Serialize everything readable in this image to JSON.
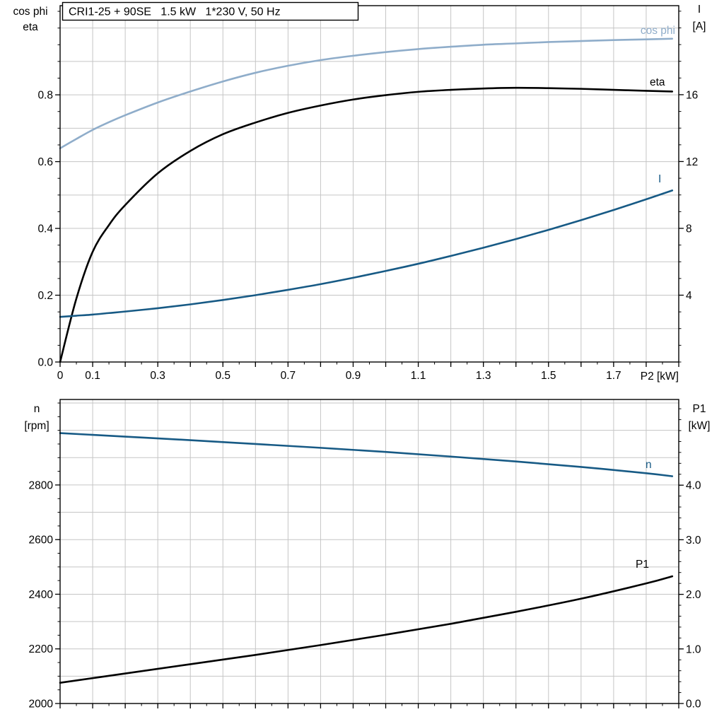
{
  "title_box": {
    "text": "CRI1-25 + 90SE   1.5 kW   1*230 V, 50 Hz"
  },
  "colors": {
    "background": "#ffffff",
    "grid": "#c5c5c5",
    "axis": "#000000",
    "black": "#000000",
    "light_blue": "#8fadca",
    "dark_blue": "#175a85"
  },
  "chart_data": [
    {
      "type": "line",
      "name": "motor-electrical-curves",
      "title": "CRI1-25 + 90SE   1.5 kW   1*230 V, 50 Hz",
      "x_axis": {
        "label": "P2 [kW]",
        "min": 0,
        "max": 1.9,
        "grid_step": 0.1,
        "major_tick_step": 0.1,
        "minor_tick_step": 0.05,
        "ticks": [
          {
            "v": 0,
            "t": "0"
          },
          {
            "v": 0.1,
            "t": "0.1"
          },
          {
            "v": 0.3,
            "t": "0.3"
          },
          {
            "v": 0.5,
            "t": "0.5"
          },
          {
            "v": 0.7,
            "t": "0.7"
          },
          {
            "v": 0.9,
            "t": "0.9"
          },
          {
            "v": 1.1,
            "t": "1.1"
          },
          {
            "v": 1.3,
            "t": "1.3"
          },
          {
            "v": 1.5,
            "t": "1.5"
          },
          {
            "v": 1.7,
            "t": "1.7"
          }
        ]
      },
      "y_left": {
        "label_lines": [
          "cos phi",
          "eta"
        ],
        "min": 0,
        "max": 1.067,
        "grid_step": 0.1,
        "minor_tick_step": 0.05,
        "ticks": [
          {
            "v": 0.0,
            "t": "0.0"
          },
          {
            "v": 0.2,
            "t": "0.2"
          },
          {
            "v": 0.4,
            "t": "0.4"
          },
          {
            "v": 0.6,
            "t": "0.6"
          },
          {
            "v": 0.8,
            "t": "0.8"
          }
        ]
      },
      "y_right": {
        "label_lines": [
          "I",
          "[A]"
        ],
        "min": 0,
        "max": 21.33,
        "minor_tick_step": 1,
        "ticks": [
          {
            "v": 4,
            "t": "4"
          },
          {
            "v": 8,
            "t": "8"
          },
          {
            "v": 12,
            "t": "12"
          },
          {
            "v": 16,
            "t": "16"
          }
        ]
      },
      "series": [
        {
          "name": "cos phi",
          "label": "cos phi",
          "axis": "left",
          "color": "light_blue",
          "x": [
            0,
            0.05,
            0.1,
            0.15,
            0.2,
            0.3,
            0.4,
            0.5,
            0.6,
            0.7,
            0.8,
            0.9,
            1.0,
            1.1,
            1.2,
            1.3,
            1.4,
            1.5,
            1.6,
            1.7,
            1.8,
            1.88
          ],
          "y": [
            0.64,
            0.668,
            0.695,
            0.718,
            0.739,
            0.777,
            0.81,
            0.84,
            0.866,
            0.887,
            0.904,
            0.917,
            0.928,
            0.937,
            0.944,
            0.95,
            0.954,
            0.958,
            0.961,
            0.964,
            0.966,
            0.968
          ]
        },
        {
          "name": "eta",
          "label": "eta",
          "axis": "left",
          "color": "black",
          "x": [
            0,
            0.05,
            0.1,
            0.15,
            0.2,
            0.3,
            0.4,
            0.5,
            0.6,
            0.7,
            0.8,
            0.9,
            1.0,
            1.1,
            1.2,
            1.3,
            1.4,
            1.5,
            1.6,
            1.7,
            1.8,
            1.88
          ],
          "y": [
            0,
            0.19,
            0.33,
            0.41,
            0.47,
            0.565,
            0.632,
            0.682,
            0.717,
            0.746,
            0.768,
            0.786,
            0.799,
            0.809,
            0.815,
            0.819,
            0.821,
            0.82,
            0.818,
            0.815,
            0.812,
            0.81
          ]
        },
        {
          "name": "I",
          "label": "I",
          "axis": "right",
          "color": "dark_blue",
          "x": [
            0,
            0.05,
            0.1,
            0.15,
            0.2,
            0.3,
            0.4,
            0.5,
            0.6,
            0.7,
            0.8,
            0.9,
            1.0,
            1.1,
            1.2,
            1.3,
            1.4,
            1.5,
            1.6,
            1.7,
            1.8,
            1.88
          ],
          "y": [
            2.7,
            2.77,
            2.84,
            2.93,
            3.02,
            3.22,
            3.45,
            3.71,
            4.0,
            4.32,
            4.66,
            5.04,
            5.45,
            5.88,
            6.35,
            6.84,
            7.36,
            7.91,
            8.49,
            9.1,
            9.74,
            10.27
          ]
        }
      ]
    },
    {
      "type": "line",
      "name": "speed-and-input-power-curves",
      "x_axis": {
        "label": "",
        "min": 0,
        "max": 1.9,
        "grid_step": 0.1,
        "major_tick_step": 0.1,
        "minor_tick_step": 0.05,
        "ticks": []
      },
      "y_left": {
        "label_lines": [
          "n",
          "[rpm]"
        ],
        "min": 2000,
        "max": 3113,
        "grid_step": 100,
        "minor_tick_step": 50,
        "ticks": [
          {
            "v": 2000,
            "t": "2000"
          },
          {
            "v": 2200,
            "t": "2200"
          },
          {
            "v": 2400,
            "t": "2400"
          },
          {
            "v": 2600,
            "t": "2600"
          },
          {
            "v": 2800,
            "t": "2800"
          }
        ]
      },
      "y_right": {
        "label_lines": [
          "P1",
          "[kW]"
        ],
        "min": 0,
        "max": 5.57,
        "minor_tick_step": 0.2,
        "ticks": [
          {
            "v": 0,
            "t": "0.0"
          },
          {
            "v": 1,
            "t": "1.0"
          },
          {
            "v": 2,
            "t": "2.0"
          },
          {
            "v": 3,
            "t": "3.0"
          },
          {
            "v": 4,
            "t": "4.0"
          }
        ]
      },
      "series": [
        {
          "name": "n",
          "label": "n",
          "axis": "left",
          "color": "dark_blue",
          "x": [
            0,
            0.2,
            0.4,
            0.6,
            0.8,
            1.0,
            1.2,
            1.4,
            1.6,
            1.8,
            1.88
          ],
          "y": [
            2990,
            2977,
            2964,
            2950,
            2936,
            2921,
            2904,
            2886,
            2866,
            2843,
            2832
          ]
        },
        {
          "name": "P1",
          "label": "P1",
          "axis": "right",
          "color": "black",
          "x": [
            0,
            0.2,
            0.4,
            0.6,
            0.8,
            1.0,
            1.2,
            1.4,
            1.6,
            1.8,
            1.88
          ],
          "y": [
            0.38,
            0.55,
            0.72,
            0.89,
            1.07,
            1.26,
            1.46,
            1.68,
            1.92,
            2.2,
            2.33
          ]
        }
      ]
    }
  ]
}
